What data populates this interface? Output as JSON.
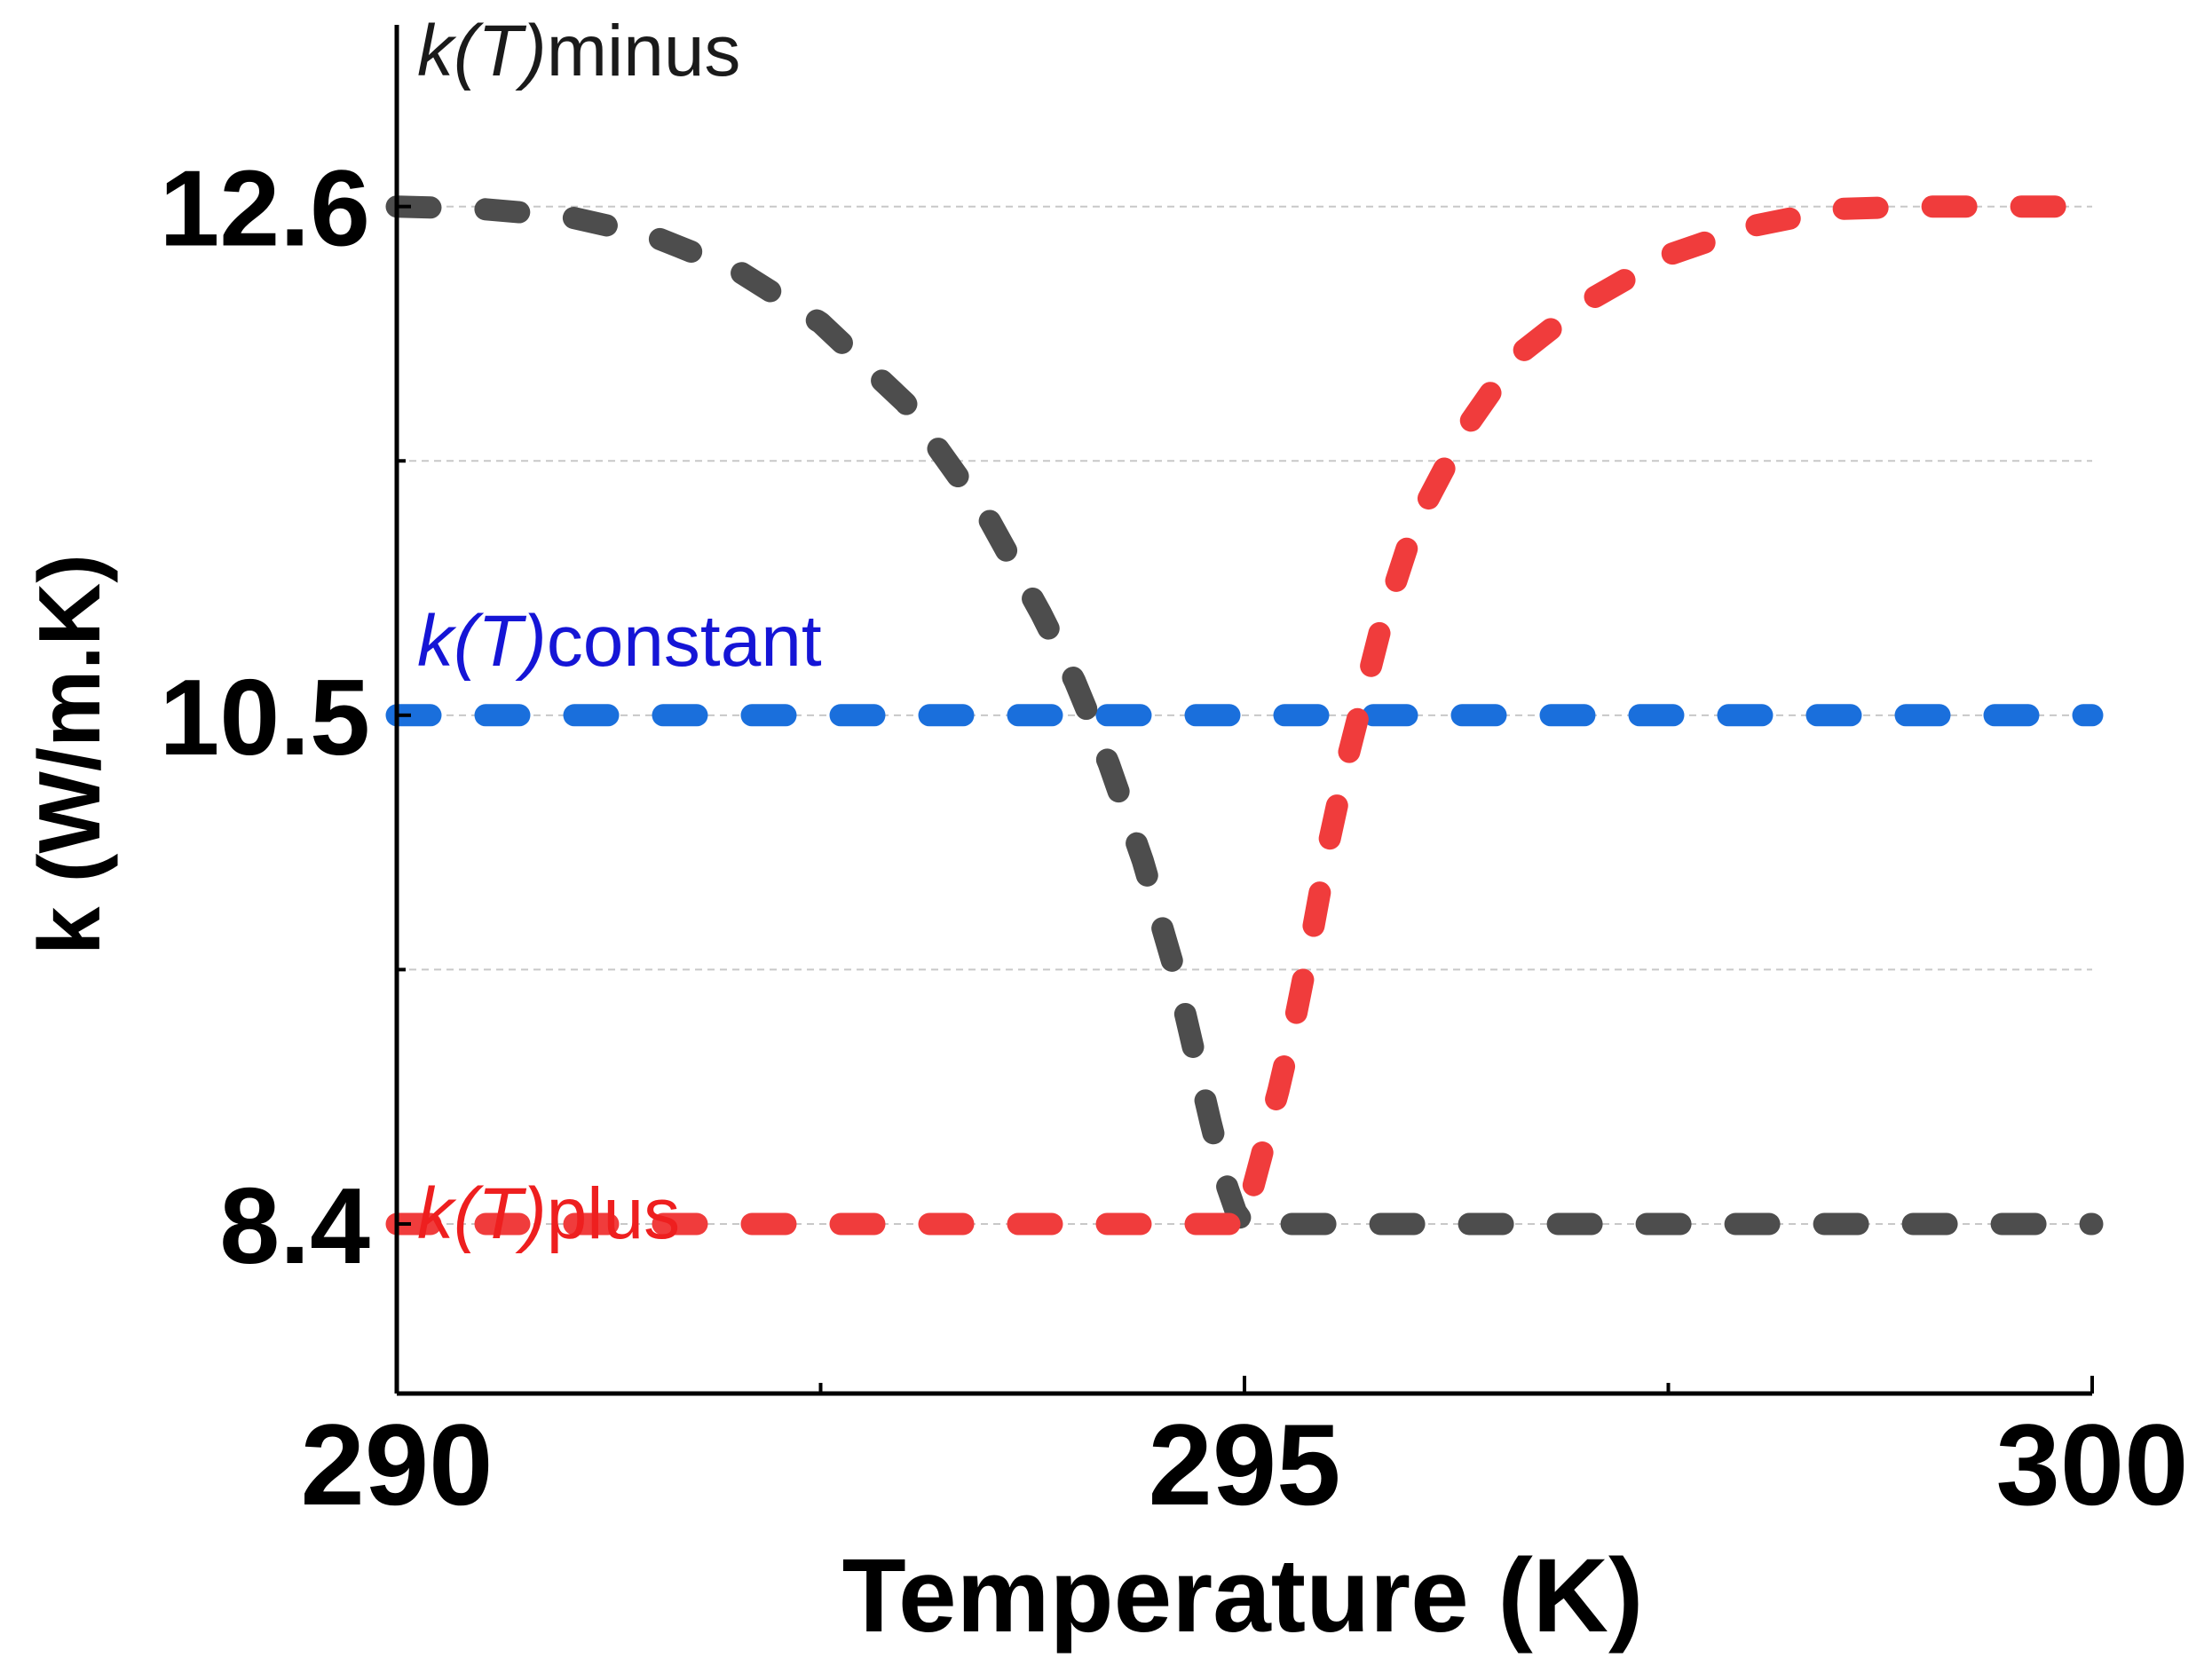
{
  "chart_data": {
    "type": "line",
    "xlabel": "Temperature (K)",
    "ylabel": "k (W/m.K)",
    "xlim": [
      290,
      300
    ],
    "ylim": [
      7.7,
      13.35
    ],
    "x_ticks": [
      {
        "value": 290,
        "label": "290"
      },
      {
        "value": 295,
        "label": "295"
      },
      {
        "value": 300,
        "label": "300"
      }
    ],
    "x_minor_ticks": [
      292.5,
      297.5
    ],
    "y_ticks": [
      {
        "value": 8.4,
        "label": "8.4"
      },
      {
        "value": 10.5,
        "label": "10.5"
      },
      {
        "value": 12.6,
        "label": "12.6"
      }
    ],
    "y_minor_ticks": [
      9.45,
      11.55
    ],
    "gridlines": [
      8.4,
      9.45,
      10.5,
      11.55,
      12.6
    ],
    "series": [
      {
        "name": "minus",
        "label_italic": "k(T)",
        "label_text": "minus",
        "color": "#4d4d4d",
        "label_color": "#1a1a1a",
        "x": [
          290.0,
          290.5,
          291.0,
          291.5,
          292.0,
          292.5,
          293.0,
          293.5,
          293.8,
          294.0,
          294.2,
          294.4,
          294.6,
          294.7,
          294.8,
          294.85,
          294.9,
          294.95,
          295.0,
          295.5,
          296.0,
          297.0,
          298.0,
          299.0,
          300.0
        ],
        "y": [
          12.6,
          12.59,
          12.56,
          12.48,
          12.34,
          12.12,
          11.79,
          11.3,
          10.92,
          10.64,
          10.3,
          9.9,
          9.42,
          9.12,
          8.82,
          8.68,
          8.55,
          8.45,
          8.4,
          8.4,
          8.4,
          8.4,
          8.4,
          8.4,
          8.4
        ]
      },
      {
        "name": "constant",
        "label_italic": "k(T)",
        "label_text": "constant",
        "color": "#1a6fdc",
        "label_color": "#1515d6",
        "x": [
          290,
          300
        ],
        "y": [
          10.5,
          10.5
        ]
      },
      {
        "name": "plus",
        "label_italic": "k(T)",
        "label_text": "plus",
        "color": "#f03c3c",
        "label_color": "#ee1f1f",
        "x": [
          290.0,
          291.0,
          292.0,
          293.0,
          294.0,
          294.5,
          295.0,
          295.05,
          295.1,
          295.15,
          295.2,
          295.3,
          295.4,
          295.5,
          295.6,
          295.8,
          296.0,
          296.3,
          296.6,
          297.0,
          297.5,
          298.0,
          298.5,
          299.0,
          299.5,
          300.0
        ],
        "y": [
          8.4,
          8.4,
          8.4,
          8.4,
          8.4,
          8.4,
          8.4,
          8.55,
          8.68,
          8.82,
          8.95,
          9.25,
          9.6,
          9.98,
          10.3,
          10.85,
          11.28,
          11.68,
          11.98,
          12.2,
          12.4,
          12.52,
          12.59,
          12.6,
          12.6,
          12.6
        ]
      }
    ]
  }
}
